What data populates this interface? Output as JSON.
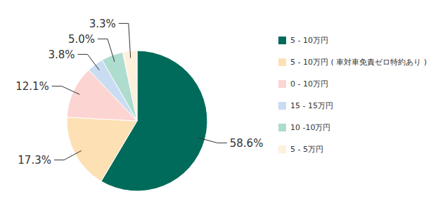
{
  "chart_data": {
    "type": "pie",
    "categories": [
      "5 - 10万円",
      "5 - 10万円 ( 車対車免責ゼロ特約あり )",
      "0 - 10万円",
      "15 - 15万円",
      "10 -10万円",
      "5 - 5万円"
    ],
    "values": [
      58.6,
      17.3,
      12.1,
      3.8,
      5.0,
      3.3
    ],
    "value_labels": [
      "58.6%",
      "17.3%",
      "12.1%",
      "3.8%",
      "5.0%",
      "3.3%"
    ],
    "colors": [
      "#006b5a",
      "#fde0b4",
      "#fcd4d2",
      "#c9dcf2",
      "#aedccf",
      "#fdf1dc"
    ],
    "data_labels": true,
    "legend": "right"
  }
}
